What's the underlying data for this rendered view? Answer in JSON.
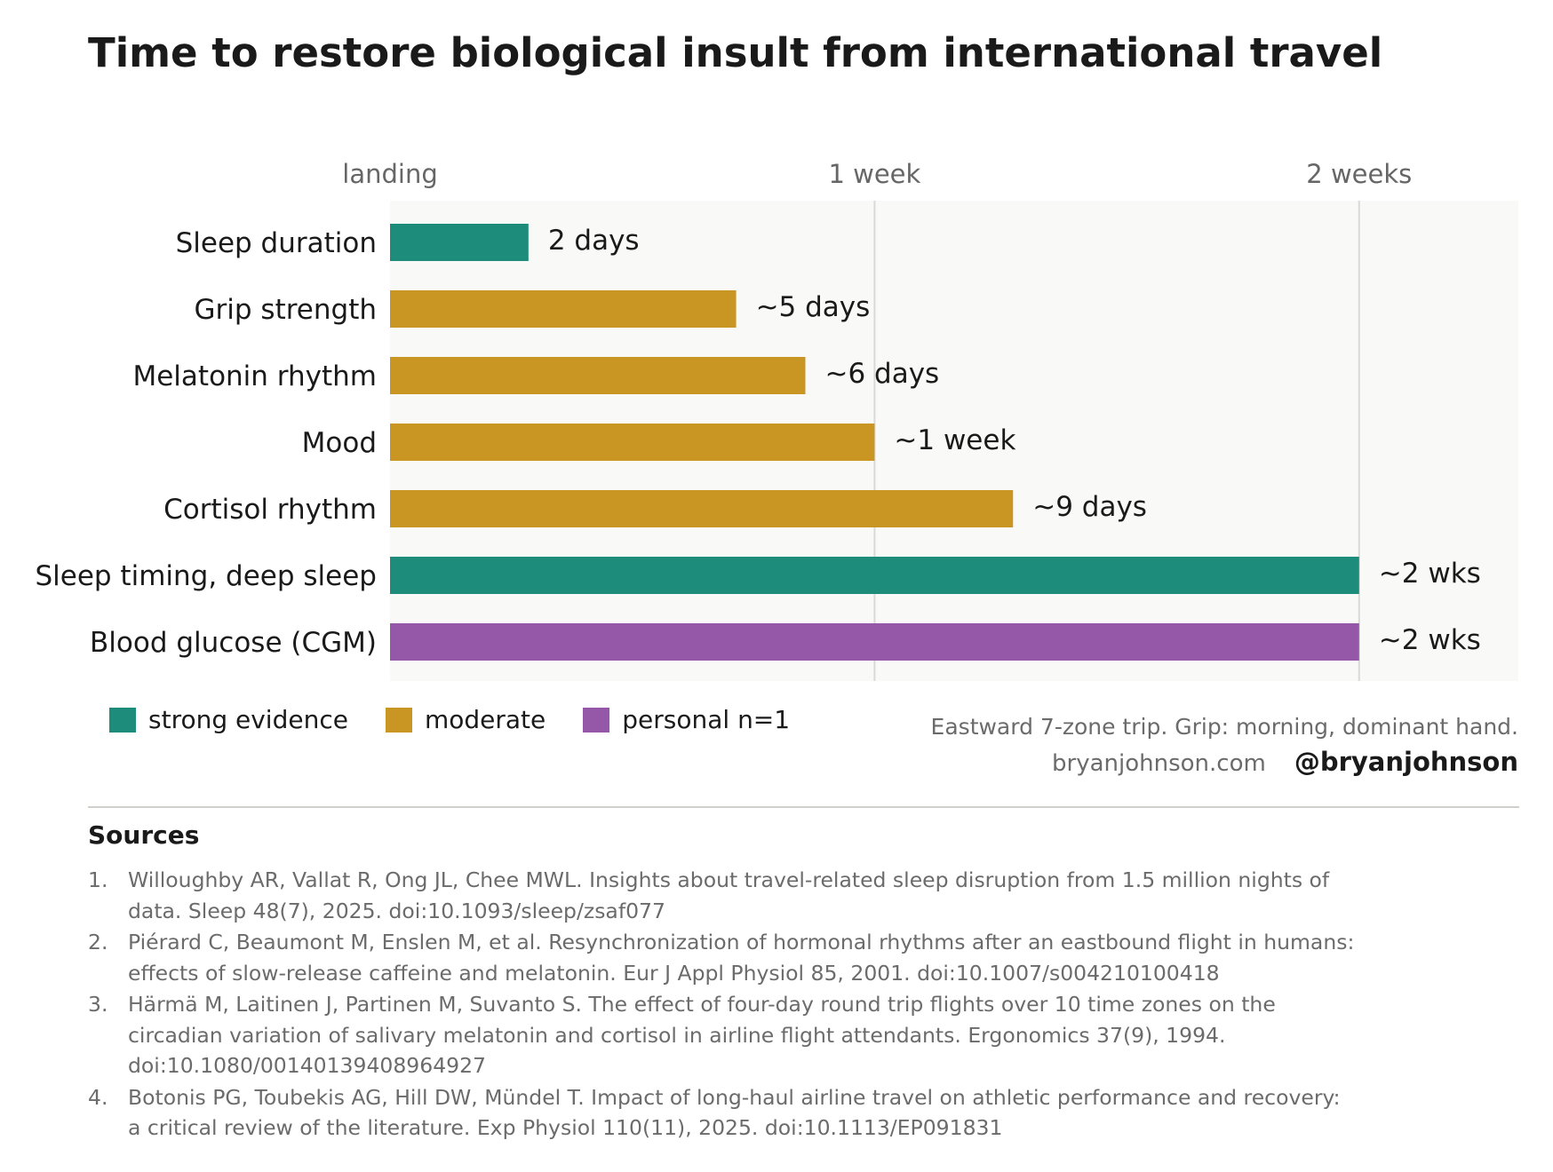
{
  "title": "Time to restore biological insult from international travel",
  "chart_data": {
    "type": "bar",
    "orientation": "horizontal",
    "x_unit": "days",
    "xlim": [
      0,
      16.3
    ],
    "x_ticks": [
      {
        "value": 0,
        "label": "landing"
      },
      {
        "value": 7,
        "label": "1 week"
      },
      {
        "value": 14,
        "label": "2 weeks"
      }
    ],
    "grid": "vertical gridlines at 1 week and 2 weeks",
    "categories": [
      "Sleep duration",
      "Grip strength",
      "Melatonin rhythm",
      "Mood",
      "Cortisol rhythm",
      "Sleep timing, deep sleep",
      "Blood glucose (CGM)"
    ],
    "values": [
      2,
      5,
      6,
      7,
      9,
      14,
      14
    ],
    "data_labels": [
      "2 days",
      "~5 days",
      "~6 days",
      "~1 week",
      "~9 days",
      "~2 wks",
      "~2 wks"
    ],
    "evidence": [
      "strong",
      "moderate",
      "moderate",
      "moderate",
      "moderate",
      "strong",
      "personal"
    ],
    "legend": [
      {
        "key": "strong",
        "label": "strong evidence",
        "color": "#1e8c7a"
      },
      {
        "key": "moderate",
        "label": "moderate",
        "color": "#c99623"
      },
      {
        "key": "personal",
        "label": "personal n=1",
        "color": "#9558a8"
      }
    ],
    "legend_position": "bottom-left"
  },
  "note": "Eastward 7-zone trip.  Grip: morning, dominant hand.",
  "site": "bryanjohnson.com",
  "handle": "@bryanjohnson",
  "sources_heading": "Sources",
  "sources": [
    {
      "num": "1.",
      "text": "Willoughby AR, Vallat R, Ong JL, Chee MWL.  Insights about travel-related sleep disruption from 1.5 million nights of data.  Sleep 48(7), 2025.  doi:10.1093/sleep/zsaf077"
    },
    {
      "num": "2.",
      "text": "Piérard C, Beaumont M, Enslen M, et al.  Resynchronization of hormonal rhythms after an eastbound flight in humans: effects of slow-release caffeine and melatonin.  Eur J Appl Physiol 85, 2001.  doi:10.1007/s004210100418"
    },
    {
      "num": "3.",
      "text": "Härmä M, Laitinen J, Partinen M, Suvanto S.  The effect of four-day round trip flights over 10 time zones on the circadian variation of salivary melatonin and cortisol in airline flight attendants.  Ergonomics 37(9), 1994.  doi:10.1080/00140139408964927"
    },
    {
      "num": "4.",
      "text": "Botonis PG, Toubekis AG, Hill DW, Mündel T.  Impact of long-haul airline travel on athletic performance and recovery: a critical review of the literature.  Exp Physiol 110(11), 2025.  doi:10.1113/EP091831"
    }
  ]
}
